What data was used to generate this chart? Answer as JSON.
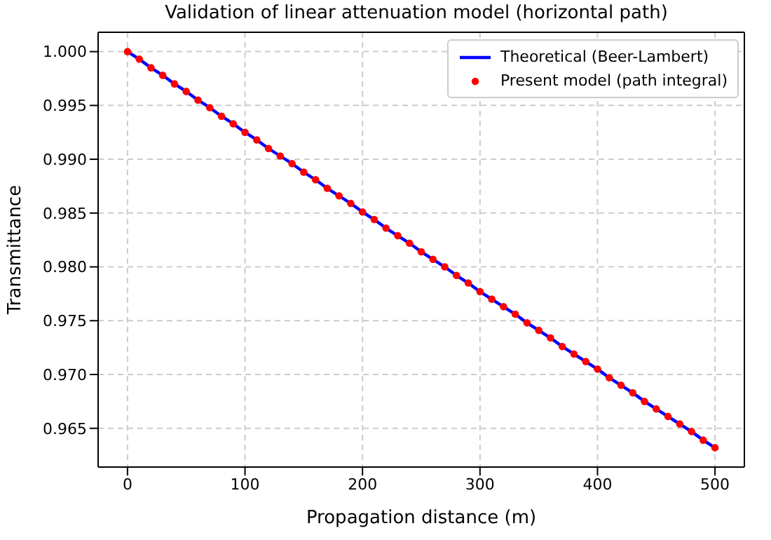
{
  "chart_data": {
    "type": "line",
    "title": "Validation of linear attenuation model (horizontal path)",
    "xlabel": "Propagation distance (m)",
    "ylabel": "Transmittance",
    "x": [
      0,
      10,
      20,
      30,
      40,
      50,
      60,
      70,
      80,
      90,
      100,
      110,
      120,
      130,
      140,
      150,
      160,
      170,
      180,
      190,
      200,
      210,
      220,
      230,
      240,
      250,
      260,
      270,
      280,
      290,
      300,
      310,
      320,
      330,
      340,
      350,
      360,
      370,
      380,
      390,
      400,
      410,
      420,
      430,
      440,
      450,
      460,
      470,
      480,
      490,
      500
    ],
    "series": [
      {
        "name": "Theoretical (Beer-Lambert)",
        "color": "#0000ff",
        "marker": "none",
        "line_style": "solid",
        "values": [
          1.0,
          0.9993,
          0.9985,
          0.9978,
          0.997,
          0.9963,
          0.9955,
          0.9948,
          0.994,
          0.9933,
          0.9925,
          0.9918,
          0.991,
          0.9903,
          0.9896,
          0.9888,
          0.9881,
          0.9873,
          0.9866,
          0.9859,
          0.9851,
          0.9844,
          0.9836,
          0.9829,
          0.9822,
          0.9814,
          0.9807,
          0.98,
          0.9792,
          0.9785,
          0.9777,
          0.977,
          0.9763,
          0.9756,
          0.9748,
          0.9741,
          0.9734,
          0.9726,
          0.9719,
          0.9712,
          0.9705,
          0.9697,
          0.969,
          0.9683,
          0.9675,
          0.9668,
          0.9661,
          0.9654,
          0.9647,
          0.9639,
          0.9632
        ]
      },
      {
        "name": "Present model (path integral)",
        "type": "scatter",
        "color": "#ff0000",
        "marker": "circle",
        "values": [
          1.0,
          0.9993,
          0.9985,
          0.9978,
          0.997,
          0.9963,
          0.9955,
          0.9948,
          0.994,
          0.9933,
          0.9925,
          0.9918,
          0.991,
          0.9903,
          0.9896,
          0.9888,
          0.9881,
          0.9873,
          0.9866,
          0.9859,
          0.9851,
          0.9844,
          0.9836,
          0.9829,
          0.9822,
          0.9814,
          0.9807,
          0.98,
          0.9792,
          0.9785,
          0.9777,
          0.977,
          0.9763,
          0.9756,
          0.9748,
          0.9741,
          0.9734,
          0.9726,
          0.9719,
          0.9712,
          0.9705,
          0.9697,
          0.969,
          0.9683,
          0.9675,
          0.9668,
          0.9661,
          0.9654,
          0.9647,
          0.9639,
          0.9632
        ]
      }
    ],
    "xlim": [
      -25,
      525
    ],
    "xticks": [
      0,
      100,
      200,
      300,
      400,
      500
    ],
    "ylim": [
      0.9614,
      1.0018
    ],
    "yticks": [
      0.965,
      {
        "value": 0.97,
        "label": "0.970"
      },
      0.975,
      {
        "value": 0.98,
        "label": "0.980"
      },
      0.985,
      {
        "value": 0.99,
        "label": "0.990"
      },
      0.995,
      {
        "value": 1,
        "label": "1.000"
      }
    ],
    "grid": true,
    "legend": "top right"
  }
}
